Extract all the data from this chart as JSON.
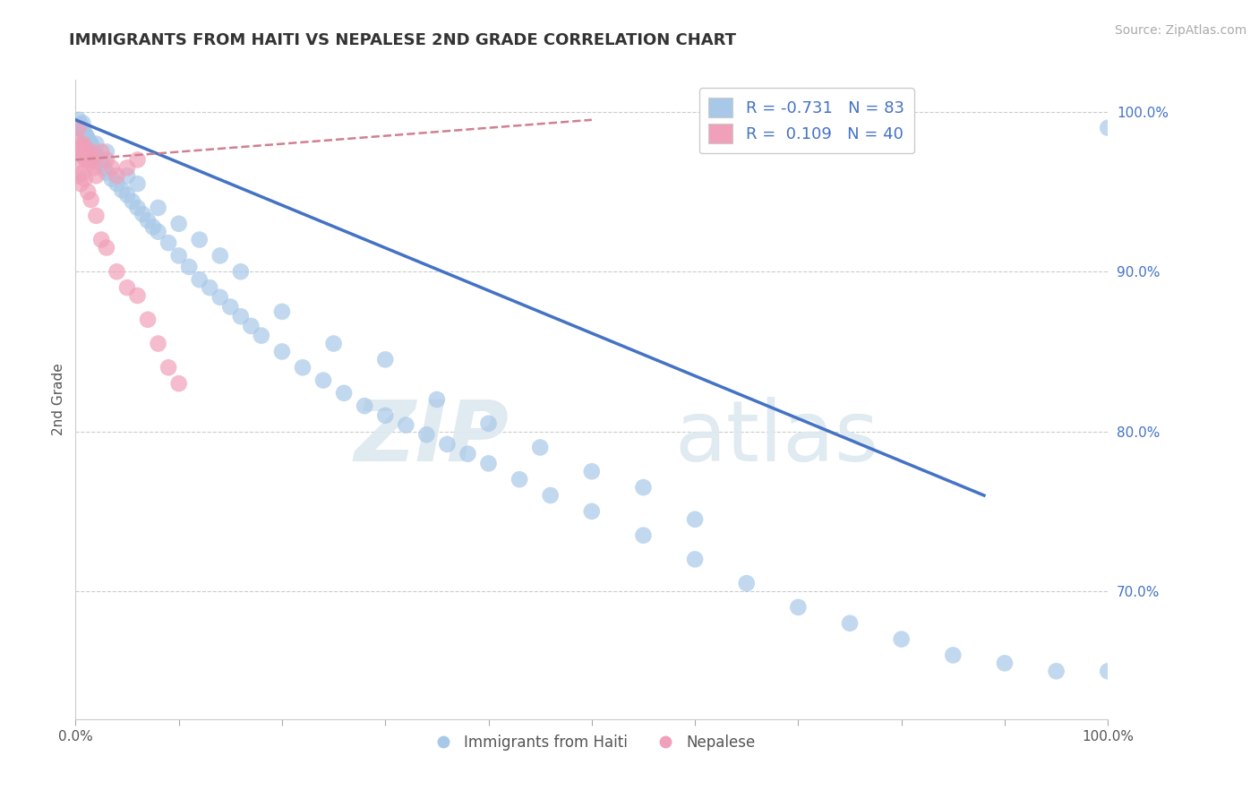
{
  "title": "IMMIGRANTS FROM HAITI VS NEPALESE 2ND GRADE CORRELATION CHART",
  "source": "Source: ZipAtlas.com",
  "ylabel": "2nd Grade",
  "legend_label1": "Immigrants from Haiti",
  "legend_label2": "Nepalese",
  "R1": -0.731,
  "N1": 83,
  "R2": 0.109,
  "N2": 40,
  "xlim": [
    0,
    100
  ],
  "ylim": [
    62,
    102
  ],
  "yticks": [
    70,
    80,
    90,
    100
  ],
  "yticklabels": [
    "70.0%",
    "80.0%",
    "90.0%",
    "100.0%"
  ],
  "color_blue": "#A8C8E8",
  "color_pink": "#F0A0B8",
  "color_blue_line": "#4472C4",
  "color_pink_line": "#D08090",
  "watermark_zip": "ZIP",
  "watermark_atlas": "atlas",
  "blue_line_x": [
    0,
    88
  ],
  "blue_line_y": [
    99.5,
    76.0
  ],
  "pink_line_x": [
    0,
    50
  ],
  "pink_line_y": [
    97.0,
    99.5
  ],
  "blue_scatter_x": [
    0.3,
    0.5,
    0.8,
    1.0,
    1.2,
    1.5,
    0.4,
    0.6,
    0.9,
    1.1,
    1.3,
    1.6,
    1.8,
    2.0,
    2.2,
    2.5,
    2.8,
    3.0,
    3.5,
    4.0,
    4.5,
    5.0,
    5.5,
    6.0,
    6.5,
    7.0,
    7.5,
    8.0,
    9.0,
    10.0,
    11.0,
    12.0,
    13.0,
    14.0,
    15.0,
    16.0,
    17.0,
    18.0,
    20.0,
    22.0,
    24.0,
    26.0,
    28.0,
    30.0,
    32.0,
    34.0,
    36.0,
    38.0,
    40.0,
    43.0,
    46.0,
    50.0,
    55.0,
    60.0,
    65.0,
    70.0,
    75.0,
    80.0,
    85.0,
    90.0,
    95.0,
    30.0,
    35.0,
    40.0,
    45.0,
    50.0,
    55.0,
    60.0,
    20.0,
    25.0,
    10.0,
    12.0,
    14.0,
    16.0,
    8.0,
    6.0,
    5.0,
    3.0,
    2.0,
    1.0,
    0.7,
    100.0,
    100.0
  ],
  "blue_scatter_y": [
    99.5,
    99.2,
    98.8,
    98.5,
    98.3,
    98.0,
    99.0,
    98.9,
    98.6,
    98.4,
    98.1,
    97.8,
    97.5,
    97.3,
    97.0,
    96.8,
    96.5,
    96.2,
    95.8,
    95.5,
    95.1,
    94.8,
    94.4,
    94.0,
    93.6,
    93.2,
    92.8,
    92.5,
    91.8,
    91.0,
    90.3,
    89.5,
    89.0,
    88.4,
    87.8,
    87.2,
    86.6,
    86.0,
    85.0,
    84.0,
    83.2,
    82.4,
    81.6,
    81.0,
    80.4,
    79.8,
    79.2,
    78.6,
    78.0,
    77.0,
    76.0,
    75.0,
    73.5,
    72.0,
    70.5,
    69.0,
    68.0,
    67.0,
    66.0,
    65.5,
    65.0,
    84.5,
    82.0,
    80.5,
    79.0,
    77.5,
    76.5,
    74.5,
    87.5,
    85.5,
    93.0,
    92.0,
    91.0,
    90.0,
    94.0,
    95.5,
    96.0,
    97.5,
    98.0,
    98.5,
    99.3,
    65.0,
    99.0
  ],
  "pink_scatter_x": [
    0.1,
    0.2,
    0.3,
    0.4,
    0.5,
    0.6,
    0.7,
    0.8,
    0.9,
    1.0,
    1.1,
    1.2,
    1.3,
    1.4,
    1.5,
    1.6,
    1.8,
    2.0,
    2.5,
    3.0,
    3.5,
    4.0,
    5.0,
    6.0,
    0.3,
    0.5,
    0.7,
    0.9,
    1.2,
    1.5,
    2.0,
    2.5,
    3.0,
    4.0,
    5.0,
    6.0,
    7.0,
    8.0,
    9.0,
    10.0
  ],
  "pink_scatter_y": [
    97.5,
    98.2,
    99.0,
    97.0,
    97.8,
    97.5,
    98.0,
    97.2,
    97.8,
    97.0,
    97.5,
    97.2,
    96.8,
    97.0,
    97.5,
    97.0,
    96.5,
    96.0,
    97.5,
    97.0,
    96.5,
    96.0,
    96.5,
    97.0,
    96.0,
    95.5,
    96.2,
    95.8,
    95.0,
    94.5,
    93.5,
    92.0,
    91.5,
    90.0,
    89.0,
    88.5,
    87.0,
    85.5,
    84.0,
    83.0
  ]
}
